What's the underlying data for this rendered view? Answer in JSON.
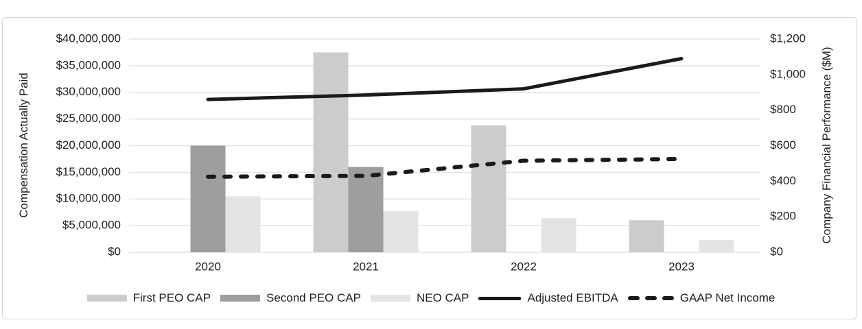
{
  "chart_data": {
    "type": "bar",
    "subtype": "combo-bar-line",
    "categories": [
      "2020",
      "2021",
      "2022",
      "2023"
    ],
    "series": [
      {
        "name": "First PEO CAP",
        "kind": "bar",
        "axis": "left",
        "color": "#cbcccd",
        "values": [
          null,
          37500000,
          23800000,
          6000000
        ]
      },
      {
        "name": "Second PEO CAP",
        "kind": "bar",
        "axis": "left",
        "color": "#9c9e9f",
        "values": [
          20000000,
          16000000,
          null,
          null
        ]
      },
      {
        "name": "NEO CAP",
        "kind": "bar",
        "axis": "left",
        "color": "#e3e4e4",
        "values": [
          10500000,
          7700000,
          6400000,
          2300000
        ]
      },
      {
        "name": "Adjusted EBITDA",
        "kind": "line",
        "line_style": "solid",
        "axis": "right",
        "color": "#1a1a1a",
        "values": [
          860,
          885,
          920,
          1090
        ]
      },
      {
        "name": "GAAP Net Income",
        "kind": "line",
        "line_style": "dashed",
        "axis": "right",
        "color": "#1a1a1a",
        "values": [
          425,
          430,
          515,
          525
        ]
      }
    ],
    "left_axis": {
      "title": "Compensation Actually Paid",
      "min": 0,
      "max": 40000000,
      "step": 5000000,
      "tick_labels": [
        "$0",
        "$5,000,000",
        "$10,000,000",
        "$15,000,000",
        "$20,000,000",
        "$25,000,000",
        "$30,000,000",
        "$35,000,000",
        "$40,000,000"
      ]
    },
    "right_axis": {
      "title": "Company Financial Performance ($M)",
      "min": 0,
      "max": 1200,
      "step": 200,
      "tick_labels": [
        "$0",
        "$200",
        "$400",
        "$600",
        "$800",
        "$1,000",
        "$1,200"
      ]
    },
    "grid": true,
    "gridline_color": "#e4e4e4",
    "text_color": "#1f1f1f",
    "legend_position": "bottom"
  }
}
